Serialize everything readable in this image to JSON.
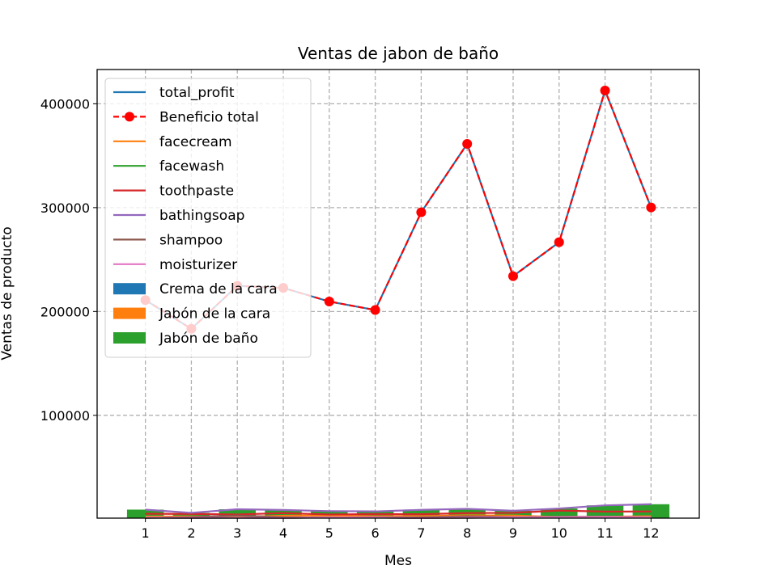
{
  "chart_data": {
    "type": "line",
    "title": "Ventas de jabon de baño",
    "xlabel": "Mes",
    "ylabel": "Ventas de producto",
    "x": [
      1,
      2,
      3,
      4,
      5,
      6,
      7,
      8,
      9,
      10,
      11,
      12
    ],
    "x_ticks": [
      "1",
      "2",
      "3",
      "4",
      "5",
      "6",
      "7",
      "8",
      "9",
      "10",
      "11",
      "12"
    ],
    "xlim": [
      -0.05,
      13.05
    ],
    "ylim": [
      1000,
      433000
    ],
    "y_ticks": [
      100000,
      200000,
      300000,
      400000
    ],
    "y_tick_labels": [
      "100000",
      "200000",
      "300000",
      "400000"
    ],
    "grid": true,
    "legend_position": "upper-left",
    "lines": [
      {
        "name": "total_profit",
        "color": "#1f77b4",
        "style": "solid",
        "marker": "none",
        "values": [
          211000,
          183300,
          224700,
          222700,
          209600,
          201400,
          295500,
          361400,
          234000,
          266700,
          412800,
          300200
        ]
      },
      {
        "name": "Beneficio total",
        "color": "#ff0000",
        "style": "dashed",
        "marker": "circle",
        "values": [
          211000,
          183300,
          224700,
          222700,
          209600,
          201400,
          295500,
          361400,
          234000,
          266700,
          412800,
          300200
        ]
      },
      {
        "name": "facecream",
        "color": "#ff7f0e",
        "style": "solid",
        "marker": "none",
        "values": [
          2500,
          2630,
          2140,
          3400,
          3600,
          2760,
          2980,
          3700,
          3540,
          1990,
          2340,
          2900
        ]
      },
      {
        "name": "facewash",
        "color": "#2ca02c",
        "style": "solid",
        "marker": "none",
        "values": [
          1500,
          1200,
          1340,
          1130,
          1740,
          1555,
          1120,
          1400,
          1780,
          1890,
          2100,
          1760
        ]
      },
      {
        "name": "toothpaste",
        "color": "#d62728",
        "style": "solid",
        "marker": "none",
        "values": [
          5200,
          5100,
          4550,
          5870,
          4560,
          4890,
          4780,
          5860,
          6100,
          8300,
          7300,
          7400
        ]
      },
      {
        "name": "bathingsoap",
        "color": "#9467bd",
        "style": "solid",
        "marker": "none",
        "values": [
          9200,
          6100,
          9550,
          8870,
          7760,
          7490,
          8980,
          9960,
          8100,
          10300,
          13300,
          14400
        ]
      },
      {
        "name": "shampoo",
        "color": "#8c564b",
        "style": "solid",
        "marker": "none",
        "values": [
          1200,
          2100,
          3550,
          1870,
          1560,
          1890,
          1780,
          2860,
          2100,
          2300,
          2400,
          1800
        ]
      },
      {
        "name": "moisturizer",
        "color": "#e377c2",
        "style": "solid",
        "marker": "none",
        "values": [
          1500,
          1200,
          1340,
          1130,
          1740,
          1555,
          1120,
          1400,
          1780,
          1890,
          2100,
          1760
        ]
      }
    ],
    "bars": [
      {
        "name": "Crema de la cara",
        "color": "#1f77b4",
        "values": [
          2500,
          2630,
          2140,
          3400,
          3600,
          2760,
          2980,
          3700,
          3540,
          1990,
          2340,
          2900
        ]
      },
      {
        "name": "Jabón de la cara",
        "color": "#ff7f0e",
        "values": [
          1500,
          1200,
          1340,
          1130,
          1740,
          1555,
          1120,
          1400,
          1780,
          1890,
          2100,
          1760
        ]
      },
      {
        "name": "Jabón de baño",
        "color": "#2ca02c",
        "values": [
          9200,
          6100,
          9550,
          8870,
          7760,
          7490,
          8980,
          9960,
          8100,
          10300,
          13300,
          14400
        ]
      }
    ],
    "legend": [
      {
        "label": "total_profit",
        "kind": "line",
        "color": "#1f77b4"
      },
      {
        "label": "Beneficio total",
        "kind": "line-marker-dashed",
        "color": "#ff0000"
      },
      {
        "label": "facecream",
        "kind": "line",
        "color": "#ff7f0e"
      },
      {
        "label": "facewash",
        "kind": "line",
        "color": "#2ca02c"
      },
      {
        "label": "toothpaste",
        "kind": "line",
        "color": "#d62728"
      },
      {
        "label": "bathingsoap",
        "kind": "line",
        "color": "#9467bd"
      },
      {
        "label": "shampoo",
        "kind": "line",
        "color": "#8c564b"
      },
      {
        "label": "moisturizer",
        "kind": "line",
        "color": "#e377c2"
      },
      {
        "label": "Crema de la cara",
        "kind": "patch",
        "color": "#1f77b4"
      },
      {
        "label": "Jabón de la cara",
        "kind": "patch",
        "color": "#ff7f0e"
      },
      {
        "label": "Jabón de baño",
        "kind": "patch",
        "color": "#2ca02c"
      }
    ]
  }
}
